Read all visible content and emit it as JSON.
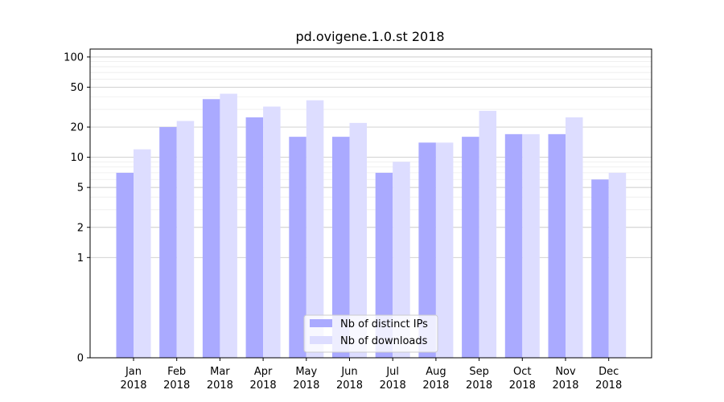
{
  "chart_data": {
    "type": "bar",
    "title": "pd.ovigene.1.0.st 2018",
    "xlabel": "",
    "ylabel": "",
    "yscale": "symlog",
    "ylim": [
      0,
      120
    ],
    "yticks": [
      0,
      1,
      2,
      5,
      10,
      20,
      50,
      100
    ],
    "grid": true,
    "legend_position": "bottom-center",
    "categories": [
      [
        "Jan",
        "2018"
      ],
      [
        "Feb",
        "2018"
      ],
      [
        "Mar",
        "2018"
      ],
      [
        "Apr",
        "2018"
      ],
      [
        "May",
        "2018"
      ],
      [
        "Jun",
        "2018"
      ],
      [
        "Jul",
        "2018"
      ],
      [
        "Aug",
        "2018"
      ],
      [
        "Sep",
        "2018"
      ],
      [
        "Oct",
        "2018"
      ],
      [
        "Nov",
        "2018"
      ],
      [
        "Dec",
        "2018"
      ]
    ],
    "series": [
      {
        "name": "Nb of distinct IPs",
        "color": "#aaaaff",
        "values": [
          7,
          20,
          38,
          25,
          16,
          16,
          7,
          14,
          16,
          17,
          17,
          6
        ]
      },
      {
        "name": "Nb of downloads",
        "color": "#ddddff",
        "values": [
          12,
          23,
          43,
          32,
          37,
          22,
          9,
          14,
          29,
          17,
          25,
          7
        ]
      }
    ]
  }
}
